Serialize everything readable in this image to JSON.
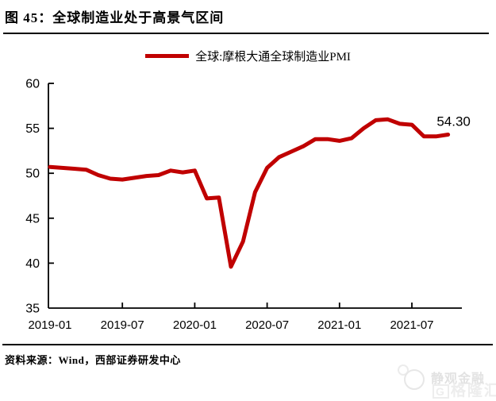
{
  "header": {
    "title": "图 45：全球制造业处于高景气区间"
  },
  "legend": {
    "label": "全球:摩根大通全球制造业PMI"
  },
  "chart_data": {
    "type": "line",
    "title": "图 45：全球制造业处于高景气区间",
    "categories": [
      "2019-01",
      "2019-02",
      "2019-03",
      "2019-04",
      "2019-05",
      "2019-06",
      "2019-07",
      "2019-08",
      "2019-09",
      "2019-10",
      "2019-11",
      "2019-12",
      "2020-01",
      "2020-02",
      "2020-03",
      "2020-04",
      "2020-05",
      "2020-06",
      "2020-07",
      "2020-08",
      "2020-09",
      "2020-10",
      "2020-11",
      "2020-12",
      "2021-01",
      "2021-02",
      "2021-03",
      "2021-04",
      "2021-05",
      "2021-06",
      "2021-07",
      "2021-08",
      "2021-09",
      "2021-10"
    ],
    "series": [
      {
        "name": "全球:摩根大通全球制造业PMI",
        "color": "#C00000",
        "values": [
          50.7,
          50.6,
          50.5,
          50.4,
          49.8,
          49.4,
          49.3,
          49.5,
          49.7,
          49.8,
          50.3,
          50.1,
          50.3,
          47.2,
          47.3,
          39.6,
          42.4,
          47.9,
          50.6,
          51.8,
          52.4,
          53.0,
          53.8,
          53.8,
          53.6,
          53.9,
          55.0,
          55.9,
          56.0,
          55.5,
          55.4,
          54.1,
          54.1,
          54.3
        ]
      }
    ],
    "ylim": [
      35,
      60
    ],
    "yticks": [
      35,
      40,
      45,
      50,
      55,
      60
    ],
    "xticks": [
      "2019-01",
      "2019-07",
      "2020-01",
      "2020-07",
      "2021-01",
      "2021-07"
    ],
    "annotation": {
      "text": "54.30",
      "category": "2021-10",
      "value": 54.3
    },
    "grid": false,
    "legend_position": "top-center"
  },
  "footer": {
    "source": "资料来源：Wind，西部证券研发中心"
  },
  "watermark": {
    "brand_top": "静观金融",
    "logo_letter": "G",
    "brand_bottom": "格隆汇"
  },
  "colors": {
    "line": "#C00000",
    "axis": "#000000",
    "text": "#000000",
    "watermark": "#E2E2E2"
  }
}
